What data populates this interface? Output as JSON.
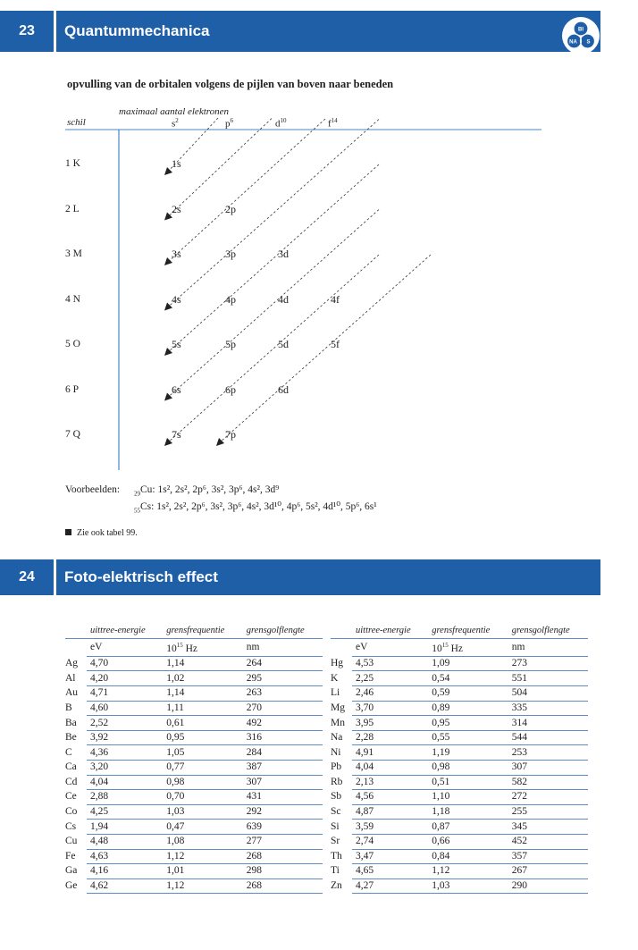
{
  "section23": {
    "number": "23",
    "title": "Quantummechanica",
    "logo": {
      "top": "BI",
      "left": "NA",
      "right": "S"
    },
    "heading": "opvulling van de orbitalen volgens de pijlen van boven naar beneden",
    "max_label": "maximaal aantal elektronen",
    "shell_label": "schil",
    "columns": {
      "s": "s",
      "s_sup": "2",
      "p": "p",
      "p_sup": "6",
      "d": "d",
      "d_sup": "10",
      "f": "f",
      "f_sup": "14"
    },
    "shells": [
      "1 K",
      "2 L",
      "3 M",
      "4 N",
      "5 O",
      "6 P",
      "7 Q"
    ],
    "orbitals": [
      [
        "1s"
      ],
      [
        "2s",
        "2p"
      ],
      [
        "3s",
        "3p",
        "3d"
      ],
      [
        "4s",
        "4p",
        "4d",
        "4f"
      ],
      [
        "5s",
        "5p",
        "5d",
        "5f"
      ],
      [
        "6s",
        "6p",
        "6d"
      ],
      [
        "7s",
        "7p"
      ]
    ],
    "examples_label": "Voorbeelden:",
    "example_cu": {
      "z": "29",
      "el": "Cu:",
      "config": "1s², 2s², 2p⁶, 3s², 3p⁶, 4s², 3d⁹"
    },
    "example_cs": {
      "z": "55",
      "el": "Cs:",
      "config": "1s², 2s², 2p⁶, 3s², 3p⁶, 4s², 3d¹⁰, 4p⁶, 5s², 4d¹⁰, 5p⁶, 6s¹"
    },
    "note": "Zie ook tabel 99."
  },
  "section24": {
    "number": "24",
    "title": "Foto-elektrisch effect",
    "headers": [
      "uittree-energie",
      "grensfrequentie",
      "grensgolflengte"
    ],
    "units": {
      "energy": "eV",
      "freq": "10",
      "freq_sup": "15",
      "freq_unit": " Hz",
      "wave": "nm"
    },
    "left_rows": [
      [
        "Ag",
        "4,70",
        "1,14",
        "264"
      ],
      [
        "Al",
        "4,20",
        "1,02",
        "295"
      ],
      [
        "Au",
        "4,71",
        "1,14",
        "263"
      ],
      [
        "B",
        "4,60",
        "1,11",
        "270"
      ],
      [
        "Ba",
        "2,52",
        "0,61",
        "492"
      ],
      [
        "Be",
        "3,92",
        "0,95",
        "316"
      ],
      [
        "C",
        "4,36",
        "1,05",
        "284"
      ],
      [
        "Ca",
        "3,20",
        "0,77",
        "387"
      ],
      [
        "Cd",
        "4,04",
        "0,98",
        "307"
      ],
      [
        "Ce",
        "2,88",
        "0,70",
        "431"
      ],
      [
        "Co",
        "4,25",
        "1,03",
        "292"
      ],
      [
        "Cs",
        "1,94",
        "0,47",
        "639"
      ],
      [
        "Cu",
        "4,48",
        "1,08",
        "277"
      ],
      [
        "Fe",
        "4,63",
        "1,12",
        "268"
      ],
      [
        "Ga",
        "4,16",
        "1,01",
        "298"
      ],
      [
        "Ge",
        "4,62",
        "1,12",
        "268"
      ]
    ],
    "right_rows": [
      [
        "Hg",
        "4,53",
        "1,09",
        "273"
      ],
      [
        "K",
        "2,25",
        "0,54",
        "551"
      ],
      [
        "Li",
        "2,46",
        "0,59",
        "504"
      ],
      [
        "Mg",
        "3,70",
        "0,89",
        "335"
      ],
      [
        "Mn",
        "3,95",
        "0,95",
        "314"
      ],
      [
        "Na",
        "2,28",
        "0,55",
        "544"
      ],
      [
        "Ni",
        "4,91",
        "1,19",
        "253"
      ],
      [
        "Pb",
        "4,04",
        "0,98",
        "307"
      ],
      [
        "Rb",
        "2,13",
        "0,51",
        "582"
      ],
      [
        "Sb",
        "4,56",
        "1,10",
        "272"
      ],
      [
        "Sc",
        "4,87",
        "1,18",
        "255"
      ],
      [
        "Si",
        "3,59",
        "0,87",
        "345"
      ],
      [
        "Sr",
        "2,74",
        "0,66",
        "452"
      ],
      [
        "Th",
        "3,47",
        "0,84",
        "357"
      ],
      [
        "Ti",
        "4,65",
        "1,12",
        "267"
      ],
      [
        "Zn",
        "4,27",
        "1,03",
        "290"
      ]
    ]
  }
}
